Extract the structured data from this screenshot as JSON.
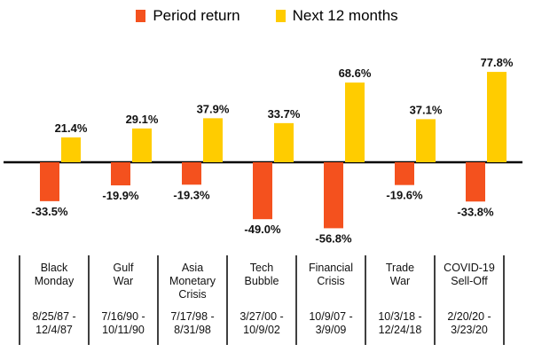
{
  "colors": {
    "period": "#F4511E",
    "next": "#FFCC00",
    "axis": "#000000"
  },
  "chart_data": {
    "type": "bar",
    "title": "",
    "xlabel": "",
    "ylabel": "",
    "ylim": [
      -60,
      80
    ],
    "grid": false,
    "legend_position": "top",
    "categories": [
      "Black Monday",
      "Gulf War",
      "Asia Monetary Crisis",
      "Tech Bubble",
      "Financial Crisis",
      "Trade War",
      "COVID-19 Sell-Off"
    ],
    "series": [
      {
        "name": "Period return",
        "values": [
          -33.5,
          -19.9,
          -19.3,
          -49.0,
          -56.8,
          -19.6,
          -33.8
        ],
        "labels": [
          "-33.5%",
          "-19.9%",
          "-19.3%",
          "-49.0%",
          "-56.8%",
          "-19.6%",
          "-33.8%"
        ]
      },
      {
        "name": "Next 12 months",
        "values": [
          21.4,
          29.1,
          37.9,
          33.7,
          68.6,
          37.1,
          77.8
        ],
        "labels": [
          "21.4%",
          "29.1%",
          "37.9%",
          "33.7%",
          "68.6%",
          "37.1%",
          "77.8%"
        ]
      }
    ],
    "events": [
      {
        "name_lines": [
          "Black",
          "Monday"
        ],
        "date_lines": [
          "8/25/87 -",
          "12/4/87"
        ]
      },
      {
        "name_lines": [
          "Gulf",
          "War"
        ],
        "date_lines": [
          "7/16/90 -",
          "10/11/90"
        ]
      },
      {
        "name_lines": [
          "Asia",
          "Monetary",
          "Crisis"
        ],
        "date_lines": [
          "7/17/98 -",
          "8/31/98"
        ]
      },
      {
        "name_lines": [
          "Tech",
          "Bubble"
        ],
        "date_lines": [
          "3/27/00 -",
          "10/9/02"
        ]
      },
      {
        "name_lines": [
          "Financial",
          "Crisis"
        ],
        "date_lines": [
          "10/9/07 -",
          "3/9/09"
        ]
      },
      {
        "name_lines": [
          "Trade",
          "War"
        ],
        "date_lines": [
          "10/3/18 -",
          "12/24/18"
        ]
      },
      {
        "name_lines": [
          "COVID-19",
          "Sell-Off"
        ],
        "date_lines": [
          "2/20/20 -",
          "3/23/20"
        ]
      }
    ]
  }
}
